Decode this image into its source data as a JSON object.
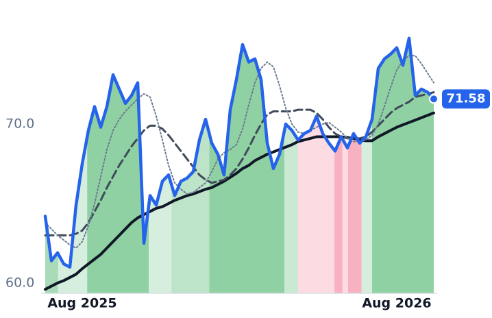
{
  "chart_data": {
    "type": "line",
    "categories": [
      null,
      null,
      null,
      null,
      null,
      null,
      "Aug 2025",
      null,
      null,
      null,
      null,
      null,
      null,
      null,
      null,
      null,
      null,
      null,
      null,
      null,
      null,
      null,
      null,
      null,
      null,
      null,
      null,
      null,
      null,
      null,
      null,
      null,
      null,
      null,
      null,
      null,
      null,
      null,
      null,
      null,
      null,
      null,
      null,
      null,
      null,
      null,
      null,
      null,
      null,
      null,
      null,
      null,
      null,
      null,
      null,
      null,
      null,
      "Aug 2026",
      null,
      null,
      null,
      null,
      null,
      null
    ],
    "ylim": [
      59.35,
      76.08
    ],
    "yticks": [
      {
        "value": 60,
        "label": "60.0"
      },
      {
        "value": 70,
        "label": "70.0"
      }
    ],
    "series": [
      {
        "color": "#2563eb",
        "style": "solid",
        "width": 4.5,
        "values": [
          64.2,
          61.4,
          61.9,
          61.2,
          61.0,
          64.9,
          67.5,
          69.6,
          71.1,
          69.8,
          71.1,
          73.1,
          72.2,
          71.3,
          71.8,
          72.6,
          62.5,
          65.5,
          64.9,
          66.4,
          66.8,
          65.5,
          66.4,
          66.6,
          67.0,
          69.0,
          70.3,
          68.8,
          68.1,
          66.8,
          70.9,
          72.8,
          75.0,
          73.9,
          74.1,
          72.8,
          68.8,
          67.2,
          68.1,
          70.0,
          69.6,
          69.0,
          69.4,
          69.6,
          70.5,
          69.4,
          68.8,
          68.3,
          69.2,
          68.5,
          69.4,
          68.8,
          69.2,
          70.3,
          73.5,
          74.1,
          74.4,
          74.8,
          73.7,
          75.4,
          71.8,
          72.2,
          72.0,
          71.58
        ]
      },
      {
        "color": "#6b7a90",
        "style": "dotted",
        "width": 2,
        "values": [
          63.8,
          63.4,
          63.0,
          62.7,
          62.4,
          62.2,
          62.6,
          63.6,
          65.0,
          66.7,
          68.4,
          69.6,
          70.3,
          70.8,
          71.2,
          71.6,
          71.9,
          71.7,
          70.5,
          69.0,
          67.4,
          66.3,
          65.9,
          65.6,
          65.7,
          66.0,
          66.3,
          67.0,
          67.8,
          68.2,
          68.4,
          68.7,
          69.7,
          71.2,
          72.6,
          73.5,
          73.9,
          73.6,
          72.4,
          71.0,
          70.0,
          69.5,
          69.4,
          69.6,
          69.8,
          70.0,
          70.1,
          69.8,
          69.5,
          69.1,
          68.9,
          68.9,
          69.0,
          69.3,
          70.0,
          71.1,
          72.3,
          73.4,
          74.0,
          74.3,
          74.3,
          73.8,
          73.2,
          72.6
        ]
      },
      {
        "color": "#3f4a5c",
        "style": "dashed",
        "width": 3,
        "values": [
          63.0,
          63.0,
          63.0,
          63.0,
          63.0,
          63.1,
          63.3,
          63.8,
          64.5,
          65.2,
          66.0,
          66.7,
          67.4,
          68.0,
          68.6,
          69.1,
          69.6,
          69.9,
          69.9,
          69.7,
          69.3,
          68.8,
          68.3,
          67.8,
          67.3,
          66.8,
          66.5,
          66.3,
          66.4,
          66.5,
          66.8,
          67.2,
          67.8,
          68.5,
          69.3,
          70.0,
          70.6,
          70.8,
          70.8,
          70.8,
          70.8,
          70.9,
          70.9,
          70.9,
          70.7,
          70.3,
          69.8,
          69.4,
          69.2,
          69.1,
          69.1,
          69.1,
          69.2,
          69.5,
          69.9,
          70.3,
          70.7,
          71.0,
          71.2,
          71.4,
          71.7,
          71.8,
          71.9,
          72.0
        ]
      },
      {
        "color": "#111827",
        "style": "solid",
        "width": 4,
        "values": [
          59.6,
          59.8,
          60.0,
          60.15,
          60.35,
          60.55,
          60.9,
          61.2,
          61.5,
          61.8,
          62.2,
          62.6,
          63.0,
          63.4,
          63.8,
          64.1,
          64.3,
          64.5,
          64.7,
          64.8,
          65.0,
          65.2,
          65.35,
          65.5,
          65.6,
          65.75,
          65.9,
          66.0,
          66.2,
          66.4,
          66.65,
          66.9,
          67.2,
          67.4,
          67.7,
          67.9,
          68.1,
          68.25,
          68.4,
          68.55,
          68.7,
          68.9,
          69.0,
          69.1,
          69.2,
          69.2,
          69.2,
          69.2,
          69.2,
          69.15,
          69.1,
          69.0,
          68.95,
          68.95,
          69.2,
          69.4,
          69.6,
          69.8,
          69.95,
          70.1,
          70.25,
          70.4,
          70.55,
          70.7
        ]
      }
    ],
    "regions": [
      {
        "start": 0,
        "end": 2.1,
        "color": "#a9dbb8"
      },
      {
        "start": 2.1,
        "end": 6.8,
        "color": "#d6eedd"
      },
      {
        "start": 6.8,
        "end": 16.8,
        "color": "#8fd1a3"
      },
      {
        "start": 16.8,
        "end": 20.5,
        "color": "#d6eedd"
      },
      {
        "start": 20.5,
        "end": 26.6,
        "color": "#bde3c8"
      },
      {
        "start": 26.6,
        "end": 38.8,
        "color": "#8fd1a3"
      },
      {
        "start": 38.8,
        "end": 41,
        "color": "#c9e9d2"
      },
      {
        "start": 41,
        "end": 46.9,
        "color": "#fcdbe2"
      },
      {
        "start": 46.9,
        "end": 48.2,
        "color": "#f7b1c0"
      },
      {
        "start": 48.2,
        "end": 49.1,
        "color": "#fcdbe2"
      },
      {
        "start": 49.1,
        "end": 51.3,
        "color": "#f7b1c0"
      },
      {
        "start": 51.3,
        "end": 53,
        "color": "#d6eedd"
      },
      {
        "start": 53,
        "end": 63,
        "color": "#8fd1a3"
      }
    ]
  }
}
